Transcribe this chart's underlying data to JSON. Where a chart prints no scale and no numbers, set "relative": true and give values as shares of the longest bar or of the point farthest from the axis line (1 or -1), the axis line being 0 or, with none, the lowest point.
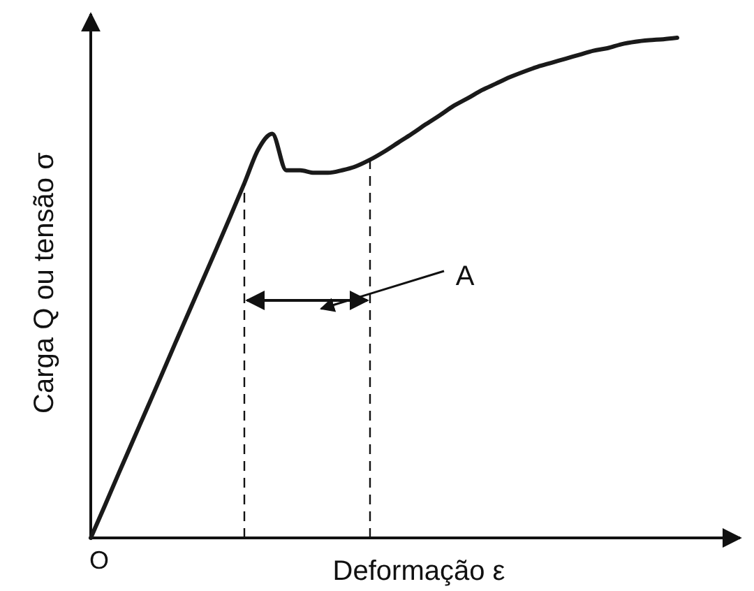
{
  "chart_data": {
    "type": "line",
    "relative": true,
    "xlabel": "Deformação ε",
    "ylabel": "Carga Q ou tensão σ",
    "color": "#1a1a1a",
    "categories": [
      null,
      null,
      null,
      null,
      null,
      null,
      null,
      null,
      null,
      null,
      null,
      null,
      null,
      null,
      null,
      null,
      null,
      null,
      null,
      null,
      null,
      null,
      null,
      null,
      null,
      null,
      null,
      null,
      null,
      null,
      null,
      null,
      null,
      null,
      null,
      null,
      null,
      null,
      null,
      null,
      null,
      null,
      null
    ],
    "values": [
      0,
      0.064,
      0.129,
      0.193,
      0.257,
      0.321,
      0.386,
      0.45,
      0.514,
      0.578,
      0.643,
      0.709,
      0.777,
      0.808,
      0.735,
      0.735,
      0.73,
      0.73,
      0.735,
      0.743,
      0.756,
      0.772,
      0.79,
      0.808,
      0.827,
      0.845,
      0.864,
      0.879,
      0.895,
      0.908,
      0.921,
      0.932,
      0.942,
      0.95,
      0.958,
      0.966,
      0.974,
      0.979,
      0.987,
      0.992,
      0.995,
      0.997,
      1
    ],
    "annotations": [
      "O",
      "A"
    ]
  }
}
